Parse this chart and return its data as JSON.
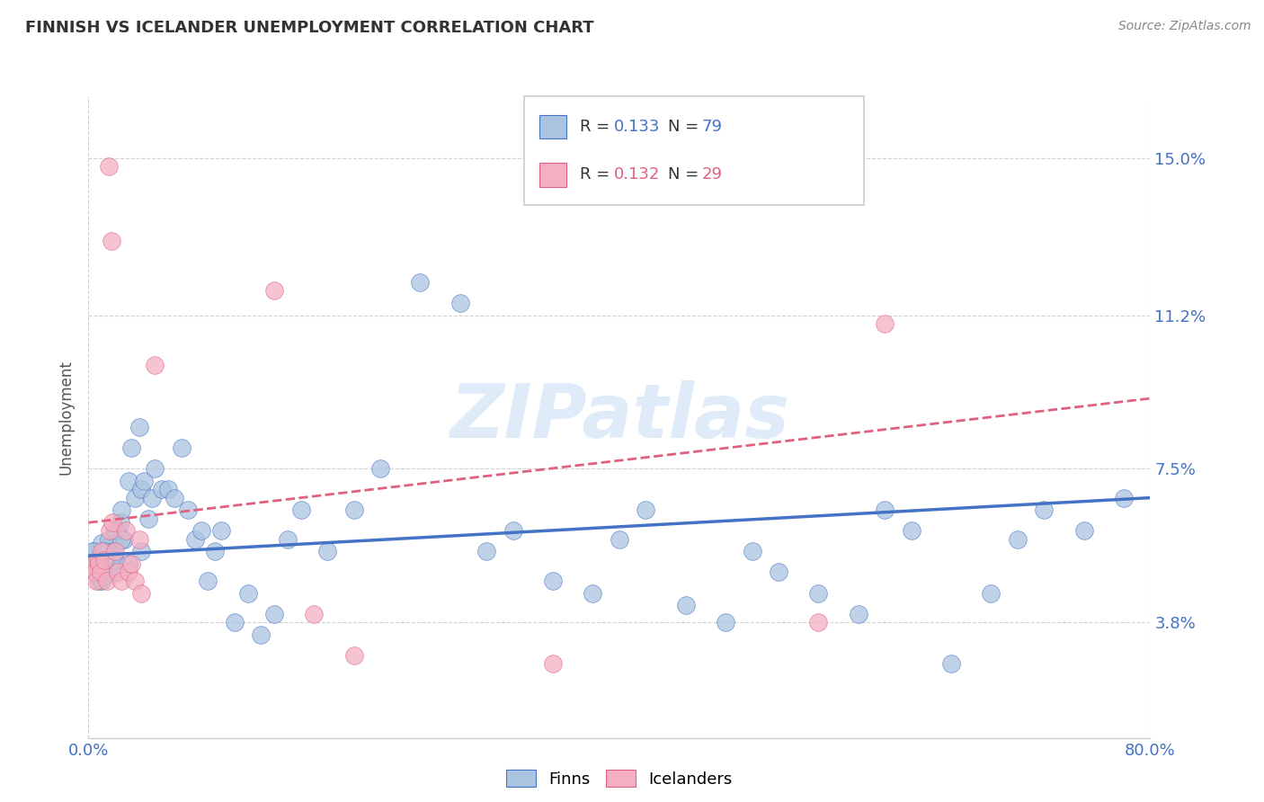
{
  "title": "FINNISH VS ICELANDER UNEMPLOYMENT CORRELATION CHART",
  "source": "Source: ZipAtlas.com",
  "ylabel": "Unemployment",
  "ytick_labels": [
    "3.8%",
    "7.5%",
    "11.2%",
    "15.0%"
  ],
  "ytick_values": [
    0.038,
    0.075,
    0.112,
    0.15
  ],
  "xmin": 0.0,
  "xmax": 0.8,
  "ymin": 0.01,
  "ymax": 0.165,
  "watermark": "ZIPatlas",
  "legend_bottom_label1": "Finns",
  "legend_bottom_label2": "Icelanders",
  "color_finns": "#aac4e0",
  "color_icelanders": "#f4afc2",
  "color_line_finns": "#4472c4",
  "color_line_icelanders": "#e06080",
  "title_color": "#333333",
  "finns_scatter_x": [
    0.004,
    0.006,
    0.007,
    0.008,
    0.009,
    0.01,
    0.011,
    0.012,
    0.013,
    0.014,
    0.015,
    0.016,
    0.017,
    0.018,
    0.019,
    0.02,
    0.022,
    0.024,
    0.025,
    0.027,
    0.03,
    0.032,
    0.035,
    0.038,
    0.04,
    0.042,
    0.045,
    0.048,
    0.05,
    0.055,
    0.06,
    0.065,
    0.07,
    0.075,
    0.08,
    0.085,
    0.09,
    0.095,
    0.1,
    0.11,
    0.12,
    0.13,
    0.14,
    0.15,
    0.16,
    0.18,
    0.2,
    0.22,
    0.25,
    0.28,
    0.3,
    0.32,
    0.35,
    0.38,
    0.4,
    0.42,
    0.45,
    0.48,
    0.5,
    0.52,
    0.55,
    0.58,
    0.6,
    0.62,
    0.65,
    0.68,
    0.7,
    0.72,
    0.75,
    0.78,
    0.003,
    0.005,
    0.008,
    0.01,
    0.012,
    0.02,
    0.025,
    0.03,
    0.04
  ],
  "finns_scatter_y": [
    0.055,
    0.053,
    0.05,
    0.048,
    0.052,
    0.057,
    0.051,
    0.049,
    0.053,
    0.056,
    0.058,
    0.052,
    0.054,
    0.05,
    0.055,
    0.053,
    0.06,
    0.062,
    0.065,
    0.058,
    0.072,
    0.08,
    0.068,
    0.085,
    0.07,
    0.072,
    0.063,
    0.068,
    0.075,
    0.07,
    0.07,
    0.068,
    0.08,
    0.065,
    0.058,
    0.06,
    0.048,
    0.055,
    0.06,
    0.038,
    0.045,
    0.035,
    0.04,
    0.058,
    0.065,
    0.055,
    0.065,
    0.075,
    0.12,
    0.115,
    0.055,
    0.06,
    0.048,
    0.045,
    0.058,
    0.065,
    0.042,
    0.038,
    0.055,
    0.05,
    0.045,
    0.04,
    0.065,
    0.06,
    0.028,
    0.045,
    0.058,
    0.065,
    0.06,
    0.068,
    0.055,
    0.05,
    0.053,
    0.048,
    0.055,
    0.06,
    0.058,
    0.052,
    0.055
  ],
  "icelanders_scatter_x": [
    0.004,
    0.005,
    0.006,
    0.007,
    0.008,
    0.009,
    0.01,
    0.012,
    0.014,
    0.016,
    0.018,
    0.02,
    0.022,
    0.025,
    0.028,
    0.03,
    0.032,
    0.035,
    0.038,
    0.04,
    0.015,
    0.017,
    0.05,
    0.14,
    0.17,
    0.2,
    0.35,
    0.55,
    0.6
  ],
  "icelanders_scatter_y": [
    0.052,
    0.05,
    0.048,
    0.053,
    0.052,
    0.05,
    0.055,
    0.053,
    0.048,
    0.06,
    0.062,
    0.055,
    0.05,
    0.048,
    0.06,
    0.05,
    0.052,
    0.048,
    0.058,
    0.045,
    0.148,
    0.13,
    0.1,
    0.118,
    0.04,
    0.03,
    0.028,
    0.038,
    0.11
  ],
  "finns_line_x": [
    0.0,
    0.8
  ],
  "finns_line_y": [
    0.054,
    0.068
  ],
  "icelanders_line_x": [
    0.0,
    0.8
  ],
  "icelanders_line_y": [
    0.062,
    0.092
  ]
}
